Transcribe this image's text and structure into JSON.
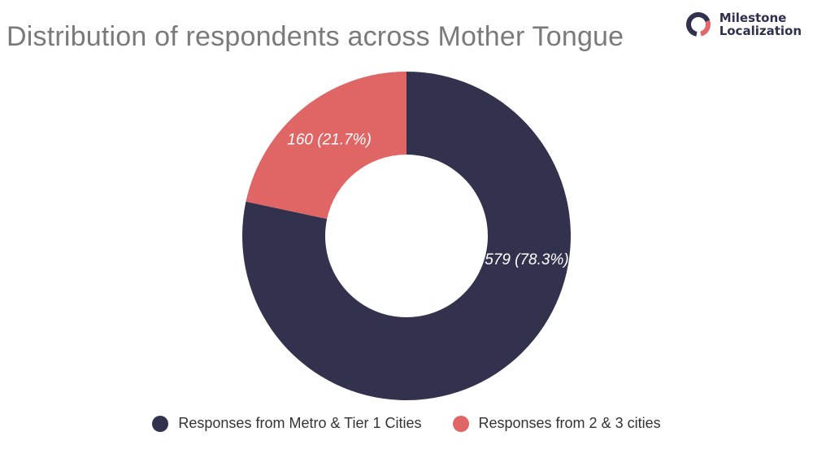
{
  "logo": {
    "line1": "Milestone",
    "line2": "Localization",
    "colors": [
      "#e0676a",
      "#30304f"
    ]
  },
  "chart_data": {
    "type": "pie",
    "variant": "donut",
    "title": "Distribution of respondents across Mother Tongue",
    "slices": [
      {
        "name": "Responses from Metro & Tier 1 Cities",
        "value": 579,
        "percent": 78.3,
        "label": "579 (78.3%)",
        "color": "#32324f"
      },
      {
        "name": "Responses from 2 & 3 cities",
        "value": 160,
        "percent": 21.7,
        "label": "160 (21.7%)",
        "color": "#e06666"
      }
    ],
    "legend_position": "bottom"
  }
}
